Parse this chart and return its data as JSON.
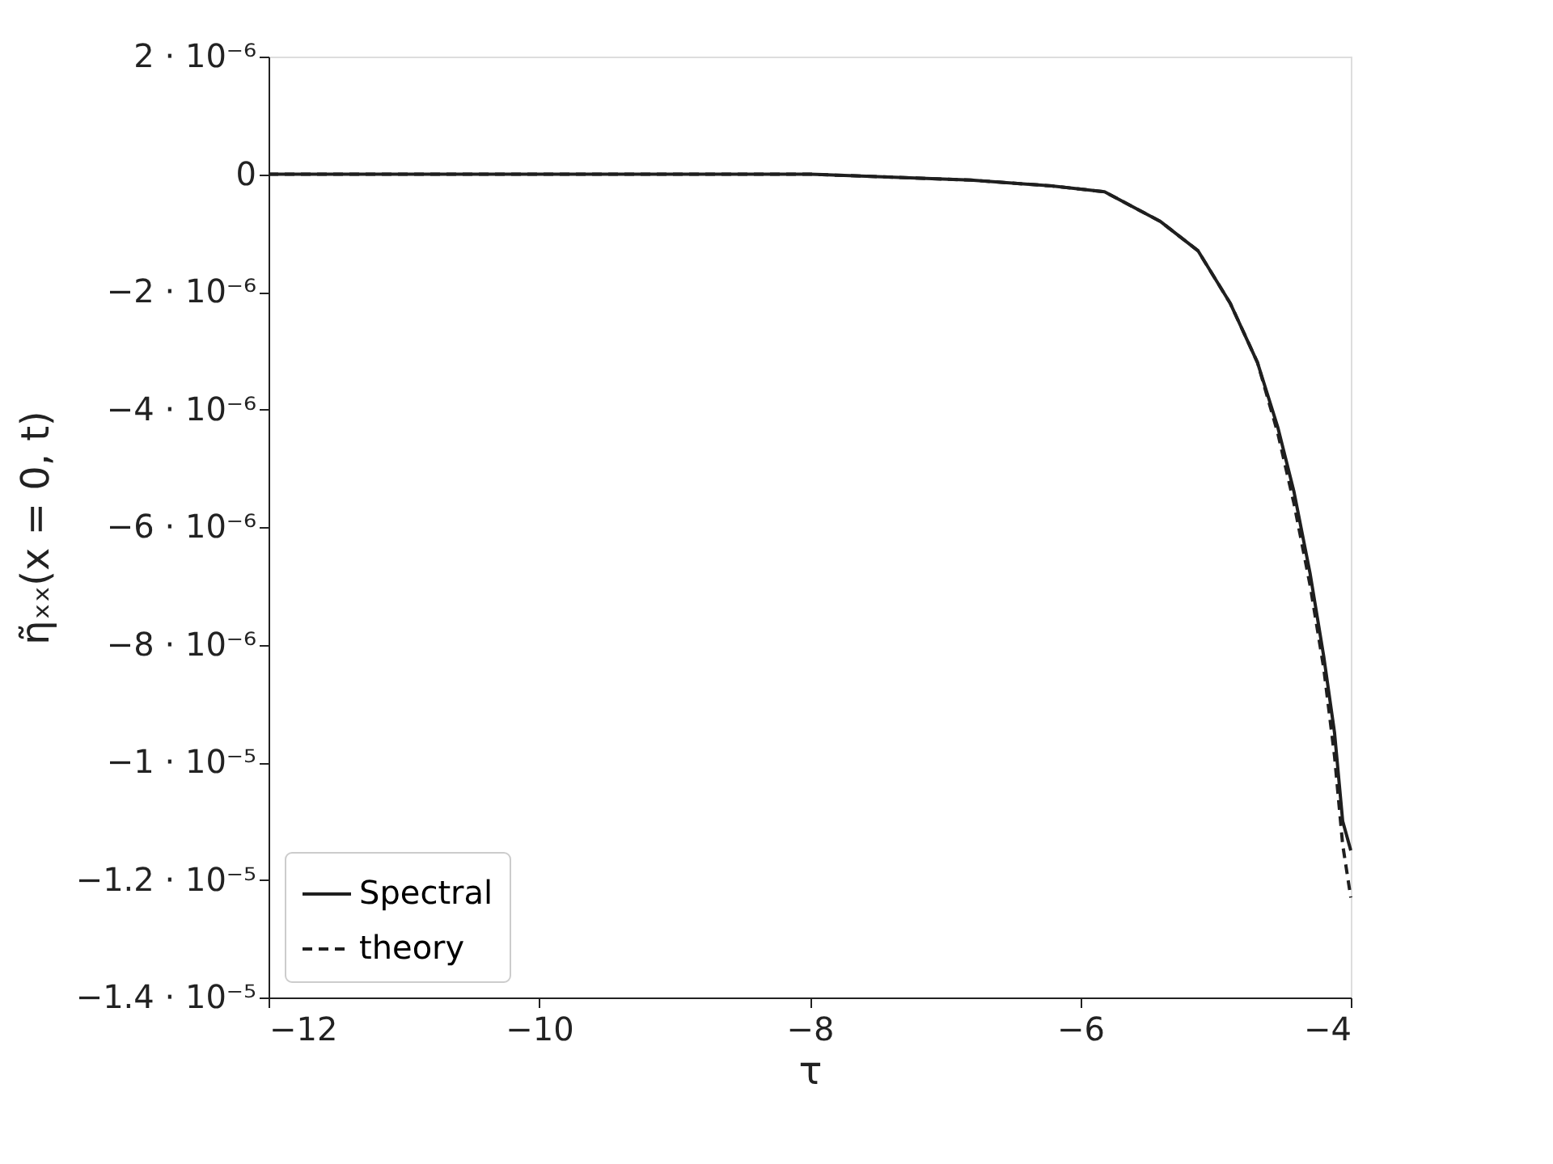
{
  "chart_data": {
    "type": "line",
    "xlabel": "τ",
    "ylabel": "η̃ₓₓ(x = 0, t)",
    "xlim": [
      -12,
      -4
    ],
    "xticks": [
      -12,
      -10,
      -8,
      -6,
      -4
    ],
    "ylim": [
      -1.4e-05,
      2e-06
    ],
    "yticks": [
      {
        "value": 2e-06,
        "label": "2 · 10⁻⁶"
      },
      0,
      {
        "value": -2e-06,
        "label": "−2 · 10⁻⁶"
      },
      {
        "value": -4e-06,
        "label": "−4 · 10⁻⁶"
      },
      {
        "value": -6e-06,
        "label": "−6 · 10⁻⁶"
      },
      {
        "value": -8e-06,
        "label": "−8 · 10⁻⁶"
      },
      {
        "value": -1e-05,
        "label": "−1 · 10⁻⁵"
      },
      {
        "value": -1.2e-05,
        "label": "−1.2 · 10⁻⁵"
      },
      {
        "value": -1.4e-05,
        "label": "−1.4 · 10⁻⁵"
      }
    ],
    "grid": false,
    "legend": "bottom left",
    "x": [
      -12,
      -10,
      -8,
      -6.81,
      -6.21,
      -5.82,
      -5.41,
      -5.13,
      -4.89,
      -4.69,
      -4.54,
      -4.42,
      -4.3,
      -4.2,
      -4.12,
      -4.06,
      -4
    ],
    "series": [
      {
        "name": "Spectral",
        "color": "#1f1f1f",
        "line_style": "solid",
        "values": [
          0,
          0,
          0,
          -1e-07,
          -2e-07,
          -3e-07,
          -8e-07,
          -1.3e-06,
          -2.2e-06,
          -3.2e-06,
          -4.3e-06,
          -5.4e-06,
          -6.8e-06,
          -8.2e-06,
          -9.5e-06,
          -1.1e-05,
          -1.15e-05
        ]
      },
      {
        "name": "theory",
        "color": "#1f1f1f",
        "line_style": "dashed",
        "values": [
          0,
          0,
          0,
          -1e-07,
          -2e-07,
          -3e-07,
          -8e-07,
          -1.3e-06,
          -2.2e-06,
          -3.2e-06,
          -4.4e-06,
          -5.6e-06,
          -7e-06,
          -8.4e-06,
          -9.9e-06,
          -1.14e-05,
          -1.23e-05
        ]
      }
    ]
  }
}
